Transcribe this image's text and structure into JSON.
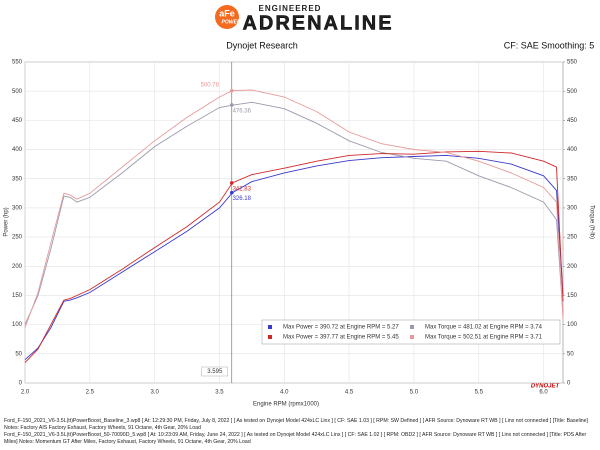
{
  "header": {
    "brand": "aFe",
    "brand_sub": "POWER",
    "tagline": "ENGINEERED",
    "product": "ADRENALINE"
  },
  "chart_data": {
    "type": "line",
    "title": "Dynojet Research",
    "subtitle": "CF: SAE Smoothing: 5",
    "x_label": "Engine RPM (rpmx1000)",
    "y_label": "Power (hp)",
    "y2_label": "Torque (ft-lb)",
    "x": [
      2.0,
      2.1,
      2.2,
      2.3,
      2.35,
      2.4,
      2.5,
      2.75,
      3.0,
      3.25,
      3.5,
      3.6,
      3.75,
      4.0,
      4.25,
      4.5,
      4.75,
      5.0,
      5.25,
      5.5,
      5.75,
      6.0,
      6.1,
      6.15
    ],
    "series": [
      {
        "name": "Max Power = 390.72 at Engine RPM = 5.27",
        "color": "#3a3acc",
        "values": [
          40,
          60,
          95,
          140,
          142,
          146,
          155,
          190,
          225,
          260,
          300,
          326,
          345,
          360,
          372,
          381,
          386,
          388,
          390,
          385,
          375,
          355,
          330,
          150
        ],
        "cursor_value": 326.18
      },
      {
        "name": "Max Torque = 481.02 at Engine RPM = 3.74",
        "color": "#9a9aae",
        "axis": "y2",
        "values": [
          100,
          150,
          230,
          320,
          318,
          310,
          318,
          360,
          405,
          440,
          472,
          476,
          481,
          470,
          445,
          415,
          395,
          385,
          380,
          355,
          335,
          310,
          280,
          115
        ],
        "cursor_value": 476.36
      },
      {
        "name": "Max Power = 397.77 at Engine RPM = 5.45",
        "color": "#d02828",
        "values": [
          35,
          58,
          100,
          142,
          145,
          150,
          160,
          195,
          232,
          268,
          310,
          343,
          357,
          368,
          380,
          390,
          393,
          392,
          396,
          397,
          394,
          380,
          370,
          140
        ],
        "cursor_value": 342.83
      },
      {
        "name": "Max Torque = 502.51 at Engine RPM = 3.71",
        "color": "#e89a9a",
        "axis": "y2",
        "values": [
          95,
          155,
          240,
          325,
          322,
          315,
          325,
          370,
          415,
          455,
          490,
          501,
          502,
          490,
          465,
          430,
          410,
          400,
          395,
          380,
          360,
          335,
          310,
          110
        ],
        "cursor_value": 500.78
      }
    ],
    "cursor_x": 3.595,
    "xlim": [
      2.0,
      6.15
    ],
    "xticks": [
      {
        "value": 2,
        "label": "2.0"
      },
      2.5,
      {
        "value": 3,
        "label": "3.0"
      },
      3.5,
      {
        "value": 4,
        "label": "4.0"
      },
      4.5,
      {
        "value": 5,
        "label": "5.0"
      },
      5.5,
      {
        "value": 6,
        "label": "6.0"
      }
    ],
    "ylim": [
      0,
      550
    ],
    "yticks": [
      0,
      50,
      100,
      150,
      200,
      250,
      300,
      350,
      400,
      450,
      500,
      550
    ],
    "y2lim": [
      0,
      550
    ],
    "y2ticks": [
      0,
      50,
      100,
      150,
      200,
      250,
      300,
      350,
      400,
      450,
      500,
      550
    ],
    "grid": true,
    "logo": "DYNOJET"
  },
  "footer": [
    "Ford_F-150_2021_V6-3.5L(tt)PowerBoost_Baseline_3.wp8 [ At: 12:29:30 PM, Friday, July 8, 2022 ] [ As tested on Dynojet Model 424xLC Linx ] [ CF: SAE 1.03 ] [ RPM: SW Defined ] [ AFR Source: Dynoware RT WB ] [ Linx not connected ] [Title: Baseline]  Notes: Factory AIS  Factory Exhaust, Factory Wheels, 91 Octane, 4th Gear, 20% Load",
    "Ford_F-150_2021_V6-3.5L(tt)PowerBoost_50-70090D_5.wp8 [ At: 10:23:09 AM, Friday, June 24, 2022 ] [ As tested on Dynojet Model 424xLC Linx ] [ CF: SAE 1.02 ] [ RPM: OBD2 ] [ AFR Source: Dynoware RT WB ] [ Linx not connected ] [Title: PDS After Miles]  Notes: Momentum GT After Miles, Factory Exhaust, Factory Wheels, 91 Octane, 4th Gear, 20% Load"
  ]
}
